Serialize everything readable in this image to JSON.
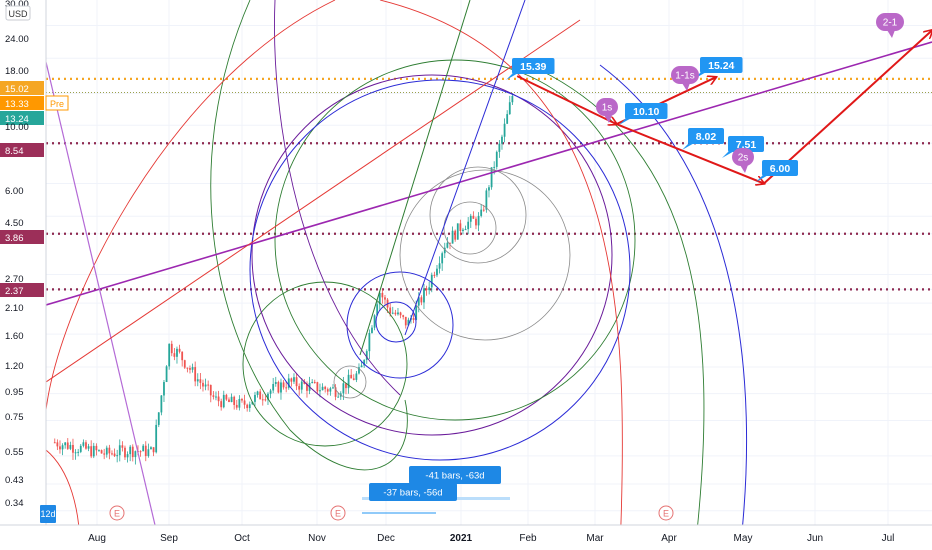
{
  "currency": "USD",
  "price_axis": {
    "ticks": [
      "30.00",
      "24.00",
      "18.00",
      "15.02",
      "13.33",
      "13.24",
      "10.00",
      "8.54",
      "6.00",
      "4.50",
      "3.86",
      "2.70",
      "2.37",
      "2.10",
      "1.60",
      "1.20",
      "0.95",
      "0.75",
      "0.55",
      "0.43",
      "0.34"
    ]
  },
  "time_axis": {
    "labels": [
      "Aug",
      "Sep",
      "Oct",
      "Nov",
      "Dec",
      "2021",
      "Feb",
      "Mar",
      "Apr",
      "May",
      "Jun",
      "Jul"
    ]
  },
  "price_markers": [
    {
      "label": "15.02",
      "color": "#f5a623"
    },
    {
      "label": "13.33",
      "color": "#ff9800",
      "tag": "Pre"
    },
    {
      "label": "13.24",
      "color": "#26a69a"
    },
    {
      "label": "8.54",
      "color": "#9c2f59"
    },
    {
      "label": "3.86",
      "color": "#9c2f59"
    },
    {
      "label": "2.37",
      "color": "#9c2f59"
    }
  ],
  "blue_labels": [
    "15.39",
    "15.24",
    "10.10",
    "8.02",
    "7.51",
    "6.00"
  ],
  "purple_bubbles": [
    "1s",
    "1-1s",
    "2s",
    "2-1"
  ],
  "range_labels": [
    "-41 bars, -63d",
    "-37 bars, -56d"
  ],
  "earnings": [
    "E",
    "E",
    "E"
  ],
  "corner_label": "12d",
  "chart_data": {
    "type": "candlestick",
    "ylabel": "USD",
    "y_scale": "log",
    "ylim": [
      0.3,
      30
    ],
    "x_range": [
      "2020-07-15",
      "2021-07-20"
    ],
    "horizontal_levels": [
      15.02,
      13.33,
      8.54,
      3.86,
      2.37
    ],
    "projection_path": [
      {
        "date": "2021-01-27",
        "price": 15.39
      },
      {
        "date": "2021-03-10",
        "price": 10.1
      },
      {
        "date": "2021-04-20",
        "price": 15.24
      },
      {
        "date": "2021-03-10",
        "price": 10.1
      },
      {
        "date": "2021-05-10",
        "price": 6.0
      },
      {
        "date": "2021-07-20",
        "price": 23.0
      }
    ],
    "key_points": [
      {
        "label": "15.39",
        "price": 15.39
      },
      {
        "label": "15.24",
        "price": 15.24
      },
      {
        "label": "10.10",
        "price": 10.1
      },
      {
        "label": "8.02",
        "price": 8.02
      },
      {
        "label": "7.51",
        "price": 7.51
      },
      {
        "label": "6.00",
        "price": 6.0
      }
    ],
    "price_series": [
      {
        "date": "2020-07-15",
        "price": 0.62
      },
      {
        "date": "2020-07-25",
        "price": 0.59
      },
      {
        "date": "2020-08-05",
        "price": 0.56
      },
      {
        "date": "2020-08-15",
        "price": 0.58
      },
      {
        "date": "2020-08-25",
        "price": 0.57
      },
      {
        "date": "2020-09-01",
        "price": 1.45
      },
      {
        "date": "2020-09-05",
        "price": 1.35
      },
      {
        "date": "2020-09-12",
        "price": 1.1
      },
      {
        "date": "2020-09-20",
        "price": 0.9
      },
      {
        "date": "2020-10-01",
        "price": 0.86
      },
      {
        "date": "2020-10-10",
        "price": 0.95
      },
      {
        "date": "2020-10-20",
        "price": 1.05
      },
      {
        "date": "2020-11-01",
        "price": 1.0
      },
      {
        "date": "2020-11-10",
        "price": 0.98
      },
      {
        "date": "2020-11-20",
        "price": 1.15
      },
      {
        "date": "2020-11-28",
        "price": 2.35
      },
      {
        "date": "2020-12-02",
        "price": 2.0
      },
      {
        "date": "2020-12-10",
        "price": 1.75
      },
      {
        "date": "2020-12-18",
        "price": 2.4
      },
      {
        "date": "2020-12-25",
        "price": 3.5
      },
      {
        "date": "2021-01-02",
        "price": 4.2
      },
      {
        "date": "2021-01-10",
        "price": 4.4
      },
      {
        "date": "2021-01-15",
        "price": 6.5
      },
      {
        "date": "2021-01-20",
        "price": 9.0
      },
      {
        "date": "2021-01-25",
        "price": 13.2
      }
    ]
  }
}
